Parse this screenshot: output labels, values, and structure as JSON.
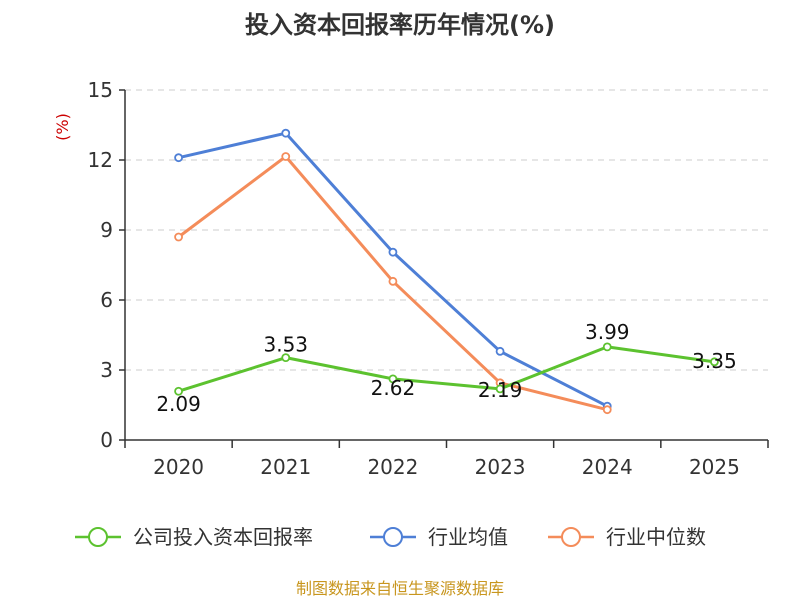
{
  "chart_data": {
    "type": "line",
    "title": "投入资本回报率历年情况(%)",
    "ylabel": "(%)",
    "xlabel": "",
    "ylim": [
      0,
      15
    ],
    "yticks": [
      0,
      3,
      6,
      9,
      12,
      15
    ],
    "categories": [
      "2020",
      "2021",
      "2022",
      "2023",
      "2024",
      "2025"
    ],
    "grid": true,
    "legend_position": "bottom",
    "series": [
      {
        "name": "公司投入资本回报率",
        "color": "#5cc22f",
        "values": [
          2.09,
          3.53,
          2.62,
          2.19,
          3.99,
          3.35
        ],
        "labels": [
          "2.09",
          "3.53",
          "2.62",
          "2.19",
          "3.99",
          "3.35"
        ]
      },
      {
        "name": "行业均值",
        "color": "#4e7fd6",
        "values": [
          12.1,
          13.15,
          8.05,
          3.8,
          1.45,
          null
        ]
      },
      {
        "name": "行业中位数",
        "color": "#f48c5a",
        "values": [
          8.7,
          12.15,
          6.8,
          2.45,
          1.3,
          null
        ]
      }
    ]
  },
  "source": "制图数据来自恒生聚源数据库"
}
